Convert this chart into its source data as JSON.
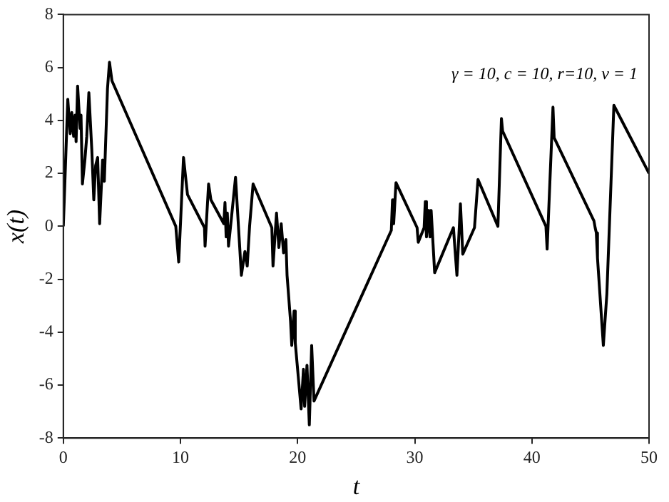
{
  "chart_data": {
    "type": "line",
    "xlabel": "t",
    "ylabel": "x(t)",
    "annotations": [
      "γ = 10, c = 10, r=10, v = 1"
    ],
    "xlim": [
      0,
      50
    ],
    "xticks": [
      0,
      10,
      20,
      30,
      40,
      50
    ],
    "ylim": [
      -8,
      8
    ],
    "yticks": [
      -8,
      -6,
      -4,
      -2,
      0,
      2,
      4,
      6,
      8
    ],
    "grid": false,
    "legend": false,
    "marker": "none",
    "line_style": "solid",
    "series": [
      {
        "color": "#000000",
        "x": [
          0,
          0.38,
          0.59,
          0.72,
          0.88,
          1.0,
          1.09,
          1.22,
          1.43,
          1.51,
          1.63,
          1.84,
          2.0,
          2.18,
          2.43,
          2.6,
          2.76,
          2.93,
          3.1,
          3.35,
          3.5,
          3.77,
          3.94,
          4.15,
          9.6,
          9.85,
          10.26,
          10.43,
          10.6,
          12.05,
          12.1,
          12.4,
          12.6,
          13.7,
          13.8,
          13.9,
          14.0,
          14.1,
          14.3,
          14.7,
          15.2,
          15.5,
          15.7,
          15.9,
          16.2,
          17.8,
          17.9,
          18.2,
          18.4,
          18.6,
          18.8,
          19.0,
          19.1,
          19.4,
          19.5,
          19.7,
          19.8,
          20.0,
          20.3,
          20.5,
          20.6,
          20.8,
          21.0,
          21.2,
          21.4,
          28.0,
          28.1,
          28.2,
          28.4,
          30.2,
          30.3,
          30.8,
          30.9,
          31.0,
          31.2,
          31.3,
          31.4,
          31.7,
          33.3,
          33.6,
          33.8,
          33.9,
          34.1,
          35.1,
          35.4,
          37.1,
          37.4,
          37.5,
          41.2,
          41.3,
          41.8,
          41.9,
          45.3,
          45.4,
          45.5,
          45.6,
          46.1,
          46.4,
          47.0,
          50
        ],
        "values": [
          0,
          4.8,
          3.5,
          4.3,
          3.4,
          4.2,
          3.2,
          5.3,
          3.7,
          4.2,
          1.6,
          2.5,
          3.4,
          5.05,
          2.9,
          1.0,
          2.3,
          2.6,
          0.1,
          2.5,
          1.7,
          5.2,
          6.2,
          5.5,
          0,
          -1.35,
          2.6,
          1.9,
          1.2,
          -0.05,
          -0.75,
          1.6,
          1.0,
          0.1,
          0.9,
          -0.4,
          0.5,
          -0.75,
          0.1,
          1.85,
          -1.85,
          -0.95,
          -1.5,
          0,
          1.6,
          -0.05,
          -1.5,
          0.5,
          -0.8,
          0.1,
          -1.0,
          -0.5,
          -1.85,
          -3.6,
          -4.5,
          -3.2,
          -4.4,
          -5.4,
          -6.9,
          -5.4,
          -6.8,
          -5.25,
          -7.5,
          -4.5,
          -6.6,
          -0.15,
          1.0,
          0.1,
          1.65,
          -0.05,
          -0.6,
          -0.05,
          0.93,
          -0.4,
          0.6,
          -0.4,
          0.6,
          -1.75,
          -0.05,
          -1.85,
          -0.05,
          0.85,
          -1.05,
          -0.05,
          1.77,
          0,
          4.07,
          3.6,
          0,
          -0.86,
          4.5,
          3.35,
          0.2,
          -0.05,
          -0.25,
          -1.2,
          -4.5,
          -2.55,
          4.57,
          2.0
        ]
      }
    ]
  }
}
